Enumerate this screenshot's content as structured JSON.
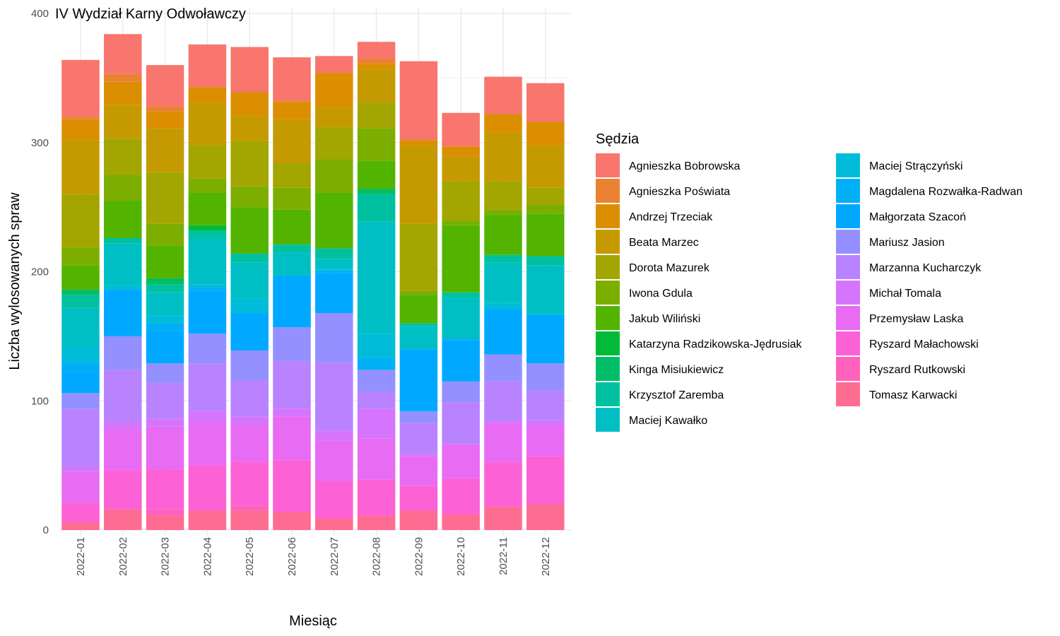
{
  "chart_data": {
    "type": "bar",
    "stacked": true,
    "title": "IV Wydział Karny Odwoławczy",
    "xlabel": "Miesiąc",
    "ylabel": "Liczba wylosowanych spraw",
    "ylim": [
      0,
      400
    ],
    "yticks": [
      "0",
      "100",
      "200",
      "300",
      "400"
    ],
    "grid": true,
    "legend_title": "Sędzia",
    "legend_position": "right",
    "categories": [
      "2022-01",
      "2022-02",
      "2022-03",
      "2022-04",
      "2022-05",
      "2022-06",
      "2022-07",
      "2022-08",
      "2022-09",
      "2022-10",
      "2022-11",
      "2022-12"
    ],
    "series": [
      {
        "name": "Tomasz Karwacki",
        "color": "#FF6C91",
        "values": [
          6,
          16,
          11,
          15,
          15,
          14,
          9,
          11,
          15,
          12,
          18,
          20
        ]
      },
      {
        "name": "Ryszard Rutkowski",
        "color": "#FF62BC",
        "values": [
          0,
          0,
          5,
          0,
          4,
          0,
          0,
          0,
          0,
          0,
          0,
          0
        ]
      },
      {
        "name": "Ryszard Małachowski",
        "color": "#FC61D5",
        "values": [
          15,
          30,
          31,
          35,
          34,
          40,
          29,
          28,
          19,
          28,
          35,
          37
        ]
      },
      {
        "name": "Przemysław Laska",
        "color": "#E76BF3",
        "values": [
          24,
          32,
          33,
          34,
          28,
          34,
          31,
          32,
          23,
          26,
          30,
          24
        ]
      },
      {
        "name": "Michał Tomala",
        "color": "#D575FE",
        "values": [
          4,
          6,
          6,
          8,
          7,
          6,
          8,
          23,
          2,
          1,
          1,
          4
        ]
      },
      {
        "name": "Marzanna Kucharczyk",
        "color": "#B983FF",
        "values": [
          45,
          40,
          28,
          37,
          28,
          37,
          53,
          13,
          24,
          32,
          31,
          23
        ]
      },
      {
        "name": "Mariusz Jasion",
        "color": "#9590FF",
        "values": [
          12,
          26,
          15,
          23,
          23,
          26,
          38,
          17,
          9,
          16,
          21,
          21
        ]
      },
      {
        "name": "Małgorzata Szacoń",
        "color": "#00A9FF",
        "values": [
          16,
          36,
          25,
          33,
          29,
          40,
          31,
          0,
          48,
          32,
          35,
          38
        ]
      },
      {
        "name": "Magdalena Rozwałka-Radwan",
        "color": "#00B0F6",
        "values": [
          8,
          0,
          6,
          3,
          0,
          0,
          2,
          9,
          0,
          1,
          0,
          0
        ]
      },
      {
        "name": "Maciej Strączyński",
        "color": "#00BCD8",
        "values": [
          12,
          3,
          6,
          2,
          11,
          0,
          1,
          19,
          0,
          0,
          5,
          0
        ]
      },
      {
        "name": "Maciej Kawałko",
        "color": "#00BFC4",
        "values": [
          30,
          33,
          18,
          36,
          28,
          18,
          8,
          87,
          18,
          32,
          31,
          38
        ]
      },
      {
        "name": "Krzysztof Zaremba",
        "color": "#00C19F",
        "values": [
          10,
          4,
          6,
          6,
          7,
          6,
          8,
          21,
          2,
          4,
          6,
          7
        ]
      },
      {
        "name": "Kinga Misiukiewicz",
        "color": "#00BE67",
        "values": [
          4,
          0,
          4,
          0,
          0,
          0,
          0,
          4,
          0,
          0,
          0,
          0
        ]
      },
      {
        "name": "Katarzyna Radzikowska-Jędrusiak",
        "color": "#00BA38",
        "values": [
          0,
          0,
          1,
          4,
          0,
          0,
          0,
          0,
          0,
          0,
          0,
          0
        ]
      },
      {
        "name": "Jakub Wiliński",
        "color": "#53B400",
        "values": [
          19,
          29,
          25,
          25,
          36,
          27,
          43,
          22,
          22,
          52,
          31,
          33
        ]
      },
      {
        "name": "Iwona Gdula",
        "color": "#7CAE00",
        "values": [
          14,
          20,
          17,
          11,
          16,
          17,
          26,
          25,
          3,
          4,
          4,
          7
        ]
      },
      {
        "name": "Dorota Mazurek",
        "color": "#A3A500",
        "values": [
          41,
          28,
          40,
          26,
          35,
          19,
          25,
          20,
          52,
          30,
          22,
          13
        ]
      },
      {
        "name": "Beata Marzec",
        "color": "#C49A00",
        "values": [
          42,
          26,
          34,
          33,
          20,
          34,
          15,
          26,
          61,
          19,
          38,
          33
        ]
      },
      {
        "name": "Andrzej Trzeciak",
        "color": "#DB8E00",
        "values": [
          16,
          18,
          13,
          12,
          18,
          14,
          27,
          4,
          4,
          8,
          14,
          18
        ]
      },
      {
        "name": "Agnieszka Poświata",
        "color": "#EA8331",
        "values": [
          2,
          6,
          4,
          0,
          0,
          0,
          0,
          4,
          0,
          0,
          0,
          0
        ]
      },
      {
        "name": "Agnieszka Bobrowska",
        "color": "#F8766D",
        "values": [
          44,
          31,
          32,
          33,
          35,
          34,
          13,
          13,
          61,
          26,
          29,
          30
        ]
      }
    ]
  }
}
